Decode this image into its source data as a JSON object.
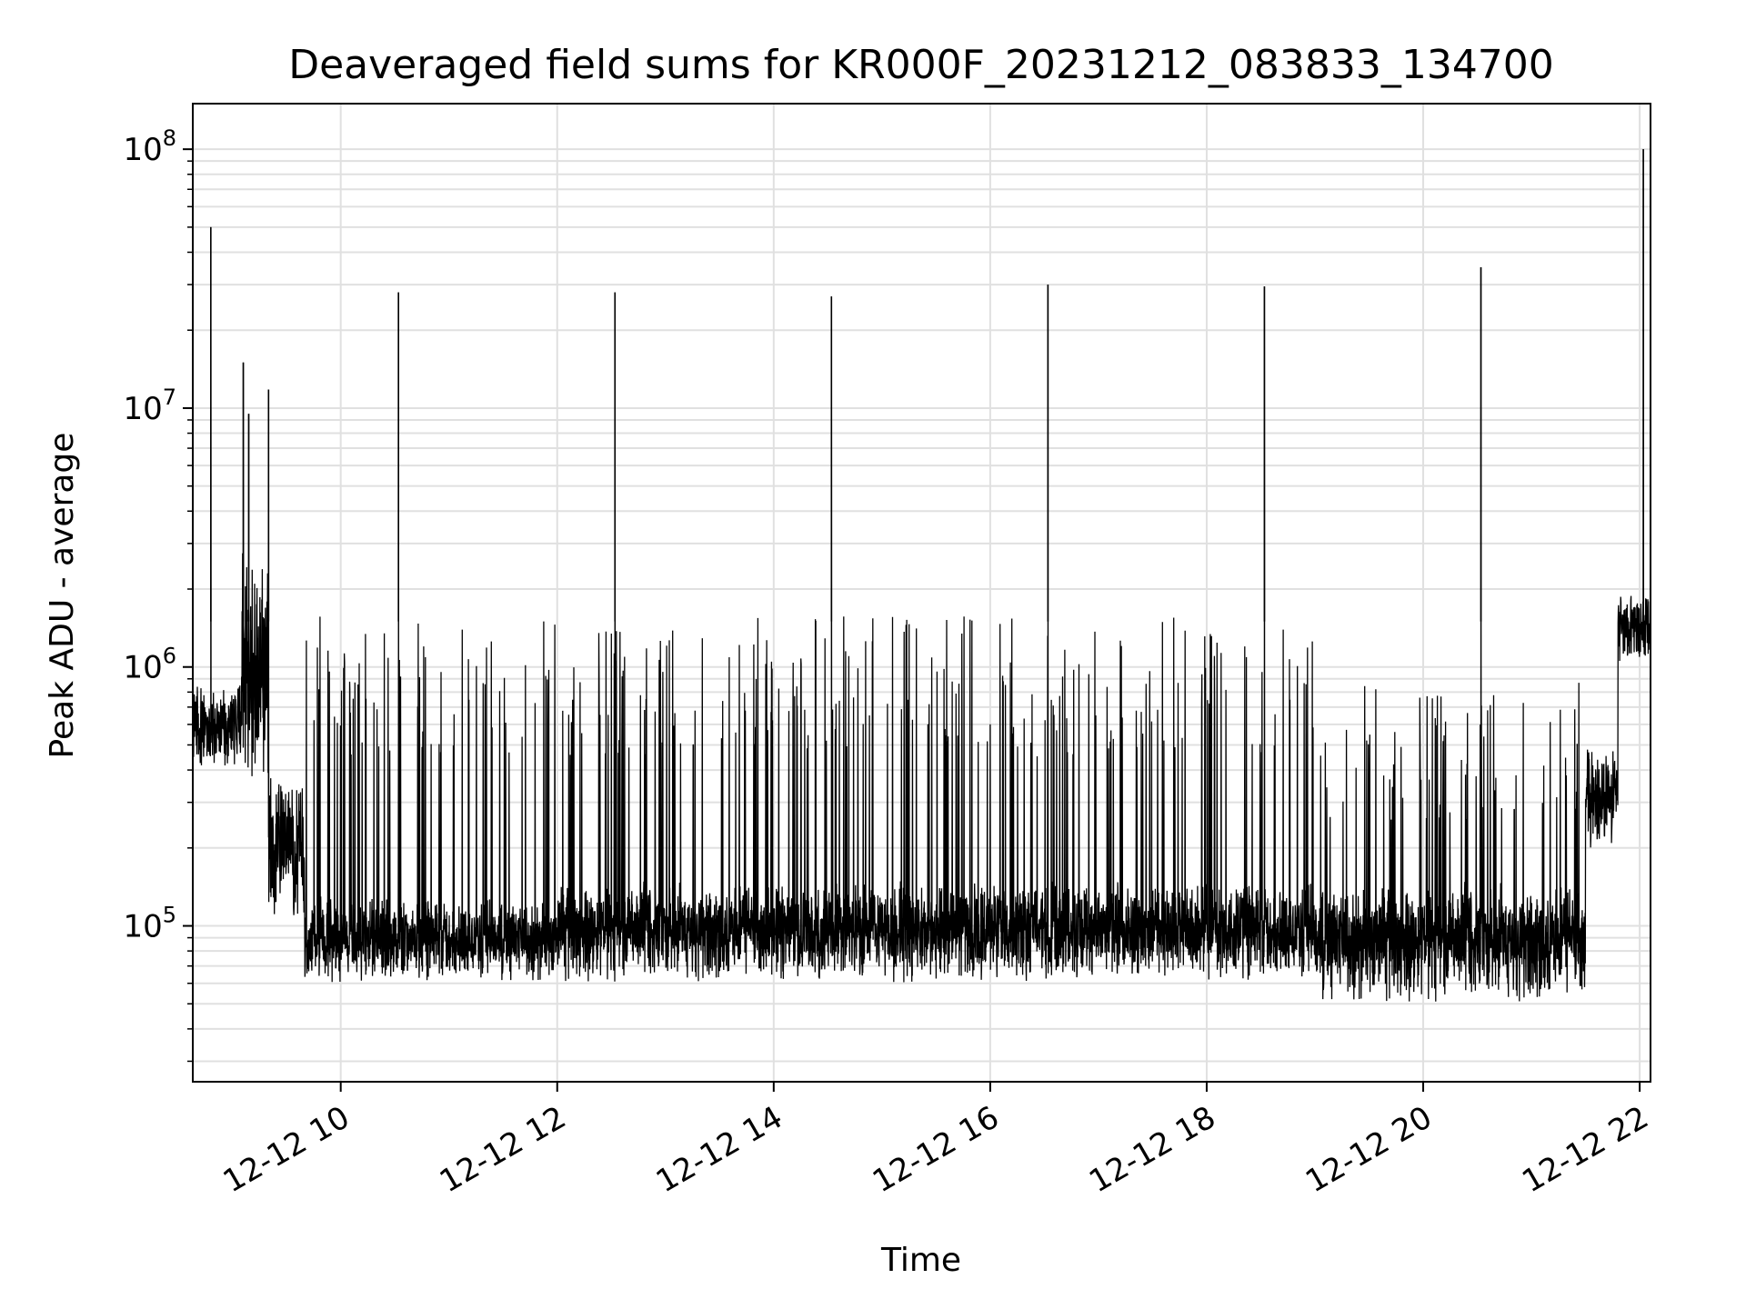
{
  "chart_data": {
    "type": "line",
    "title": "Deaveraged field sums for KR000F_20231212_083833_134700",
    "xlabel": "Time",
    "ylabel": "Peak ADU - average",
    "y_scale": "log",
    "ylim": [
      25000,
      150000000
    ],
    "xlim": [
      "2023-12-12 08:38",
      "2023-12-12 22:06"
    ],
    "grid": true,
    "line_color": "#000000",
    "x_ticks": [
      {
        "value": "2023-12-12 10:00",
        "label": "12-12 10"
      },
      {
        "value": "2023-12-12 12:00",
        "label": "12-12 12"
      },
      {
        "value": "2023-12-12 14:00",
        "label": "12-12 14"
      },
      {
        "value": "2023-12-12 16:00",
        "label": "12-12 16"
      },
      {
        "value": "2023-12-12 18:00",
        "label": "12-12 18"
      },
      {
        "value": "2023-12-12 20:00",
        "label": "12-12 20"
      },
      {
        "value": "2023-12-12 22:00",
        "label": "12-12 22"
      }
    ],
    "y_ticks": [
      {
        "value": 100000,
        "base": "10",
        "exp": "5"
      },
      {
        "value": 1000000,
        "base": "10",
        "exp": "6"
      },
      {
        "value": 10000000,
        "base": "10",
        "exp": "7"
      },
      {
        "value": 100000000,
        "base": "10",
        "exp": "8"
      }
    ],
    "regimes": [
      {
        "start": "2023-12-12 08:38",
        "end": "2023-12-12 09:05",
        "low": 400000,
        "high": 900000
      },
      {
        "start": "2023-12-12 09:05",
        "end": "2023-12-12 09:20",
        "low": 300000,
        "high": 3000000
      },
      {
        "start": "2023-12-12 09:20",
        "end": "2023-12-12 09:40",
        "low": 100000,
        "high": 400000
      },
      {
        "start": "2023-12-12 09:40",
        "end": "2023-12-12 12:00",
        "low": 60000,
        "high": 130000
      },
      {
        "start": "2023-12-12 12:00",
        "end": "2023-12-12 19:00",
        "low": 60000,
        "high": 150000
      },
      {
        "start": "2023-12-12 19:00",
        "end": "2023-12-12 21:30",
        "low": 50000,
        "high": 150000
      },
      {
        "start": "2023-12-12 21:30",
        "end": "2023-12-12 21:48",
        "low": 200000,
        "high": 500000
      },
      {
        "start": "2023-12-12 21:48",
        "end": "2023-12-12 22:06",
        "low": 1000000,
        "high": 2000000
      }
    ],
    "spike_ceiling": [
      {
        "start": "2023-12-12 09:40",
        "end": "2023-12-12 11:50",
        "value": 1600000
      },
      {
        "start": "2023-12-12 11:50",
        "end": "2023-12-12 19:00",
        "value": 1600000
      },
      {
        "start": "2023-12-12 19:00",
        "end": "2023-12-12 21:30",
        "value": 900000
      }
    ],
    "peaks": [
      {
        "time": "2023-12-12 08:48",
        "value": 50000000
      },
      {
        "time": "2023-12-12 09:06",
        "value": 15000000
      },
      {
        "time": "2023-12-12 09:09",
        "value": 9500000
      },
      {
        "time": "2023-12-12 09:20",
        "value": 11800000
      },
      {
        "time": "2023-12-12 10:32",
        "value": 28000000
      },
      {
        "time": "2023-12-12 12:32",
        "value": 28000000
      },
      {
        "time": "2023-12-12 14:32",
        "value": 27000000
      },
      {
        "time": "2023-12-12 16:32",
        "value": 30000000
      },
      {
        "time": "2023-12-12 18:32",
        "value": 29500000
      },
      {
        "time": "2023-12-12 20:32",
        "value": 35000000
      },
      {
        "time": "2023-12-12 22:02",
        "value": 100000000
      }
    ]
  }
}
